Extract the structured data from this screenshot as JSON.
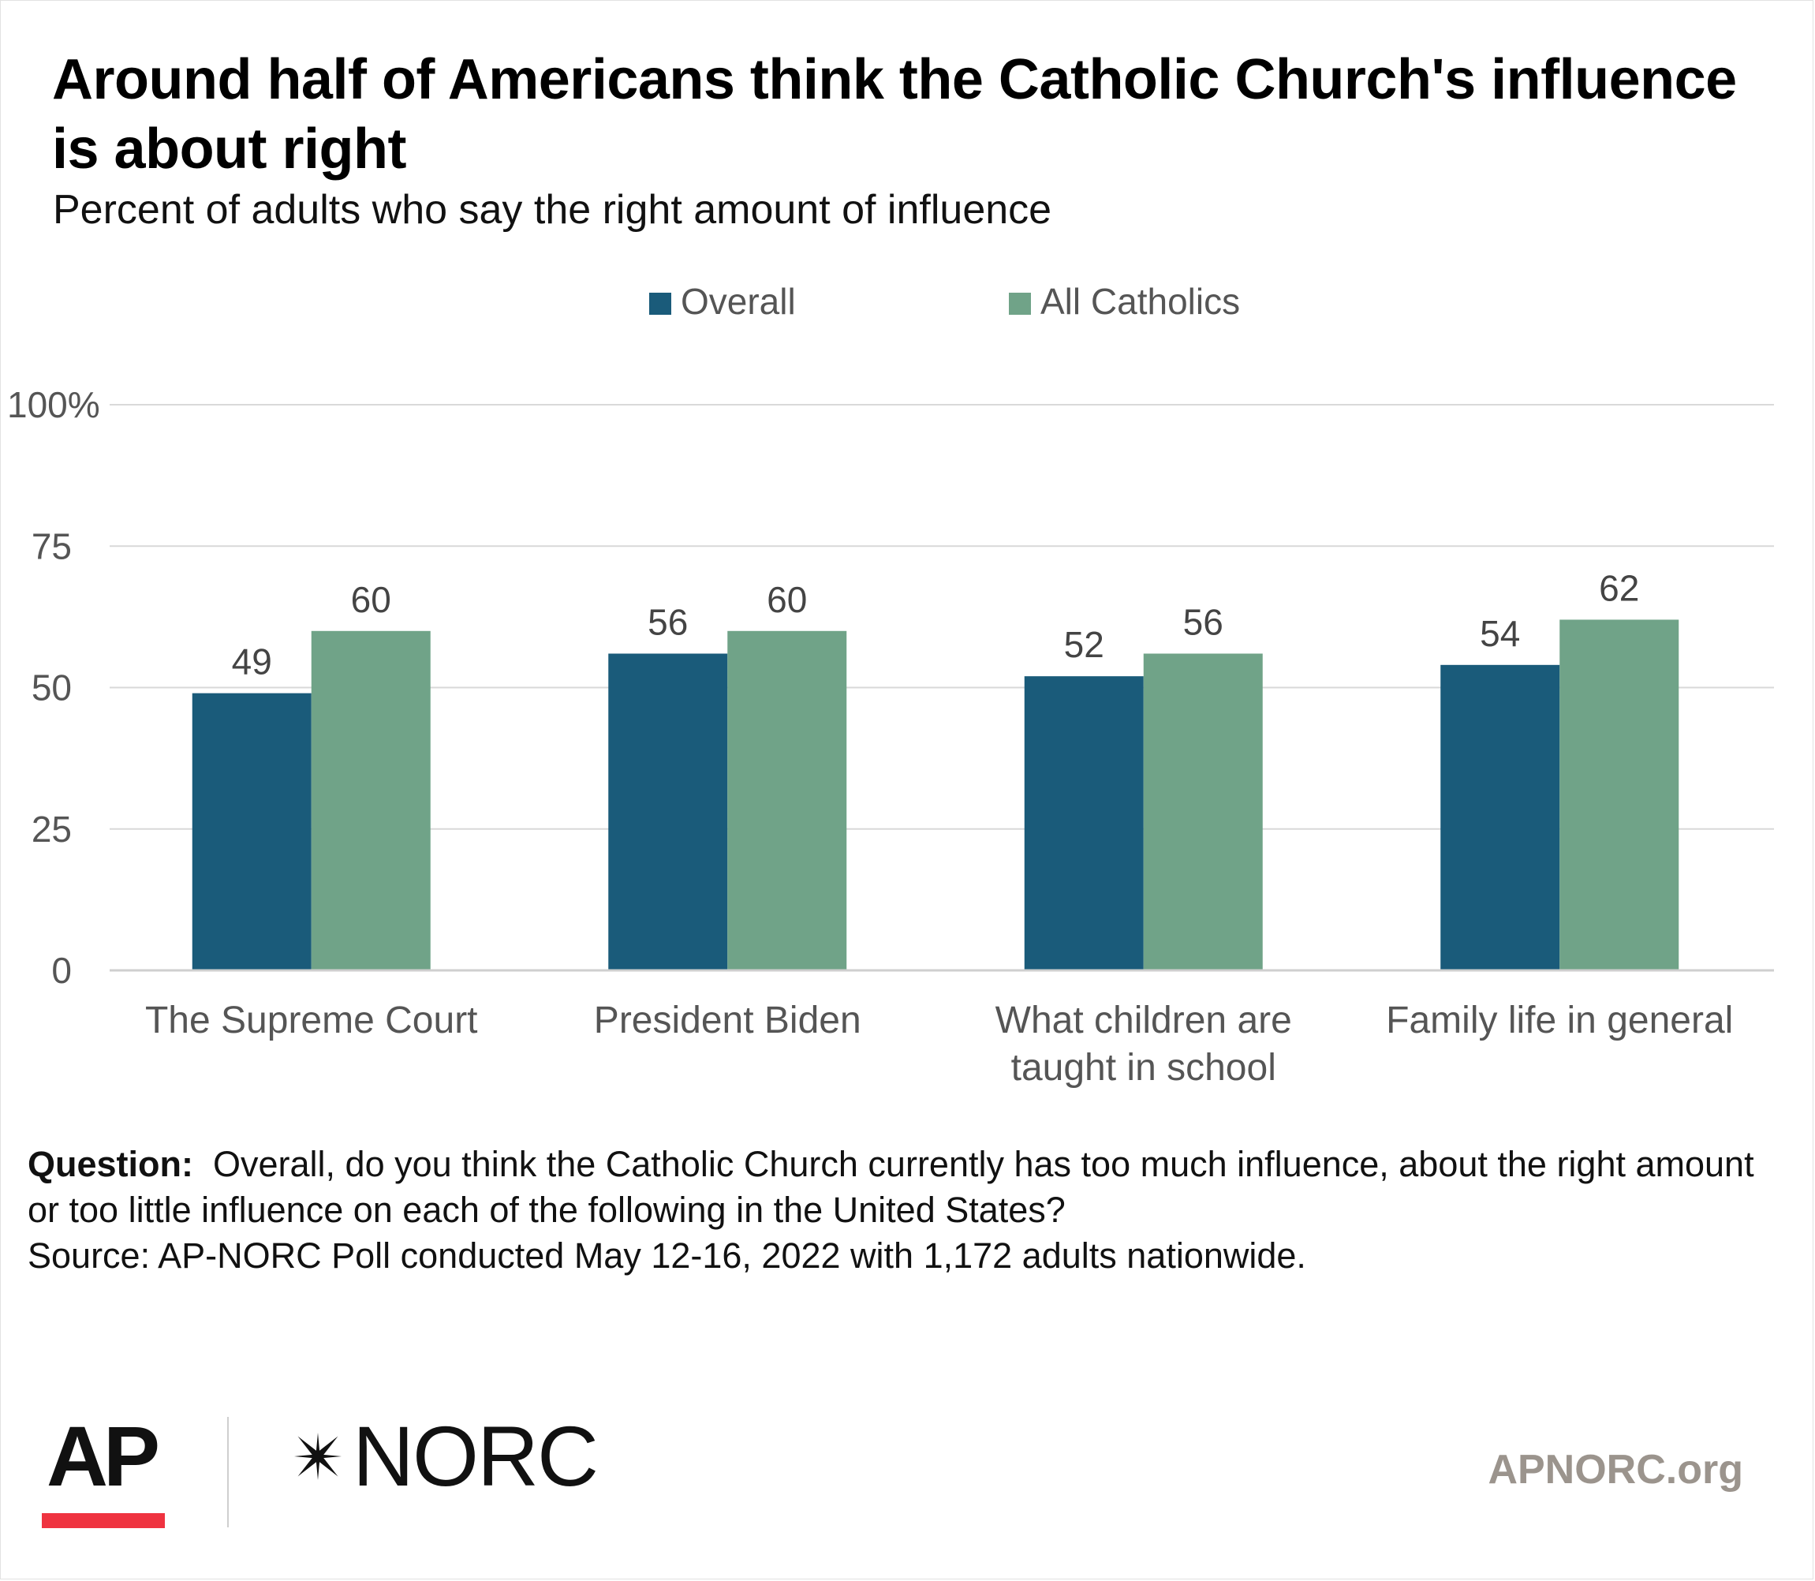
{
  "title": "Around half of Americans think the Catholic Church's influence is about right",
  "subtitle": "Percent of adults who say the right amount of influence",
  "chart_data": {
    "type": "bar",
    "categories": [
      [
        "The Supreme Court"
      ],
      [
        "President Biden"
      ],
      [
        "What children are",
        "taught in school"
      ],
      [
        "Family life in general"
      ]
    ],
    "series": [
      {
        "name": "Overall",
        "color": "#1a5b7a",
        "values": [
          49,
          56,
          52,
          54
        ]
      },
      {
        "name": "All Catholics",
        "color": "#70a388",
        "values": [
          60,
          60,
          56,
          62
        ]
      }
    ],
    "ylim": [
      0,
      100
    ],
    "yticks": [
      "0",
      "25",
      "50",
      "75",
      "100%"
    ],
    "ytick_values": [
      0,
      25,
      50,
      75,
      100
    ],
    "grid": true,
    "legend_position": "top-center"
  },
  "footnote": {
    "question_label": "Question:",
    "question_text": "Overall, do you think the Catholic Church currently has too much influence, about the right amount or too little influence on each of the following in the United States?",
    "source": "Source: AP-NORC Poll conducted May 12-16, 2022 with 1,172 adults nationwide."
  },
  "footer": {
    "logo_ap": "AP",
    "logo_norc": "NORC",
    "website": "APNORC.org"
  }
}
